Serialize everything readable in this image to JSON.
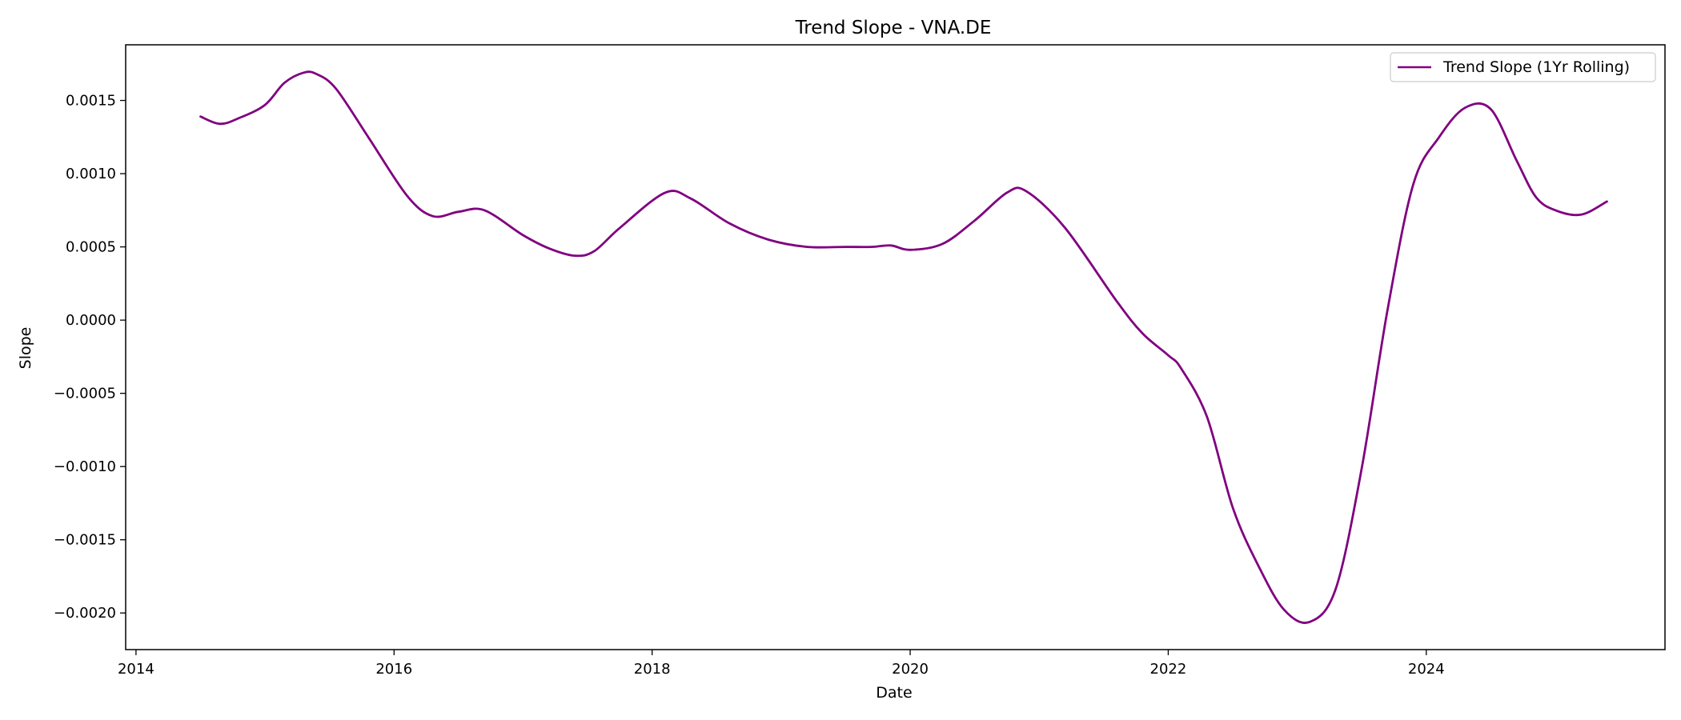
{
  "chart_data": {
    "type": "line",
    "title": "Trend Slope - VNA.DE",
    "xlabel": "Date",
    "ylabel": "Slope",
    "xlim": [
      2013.92,
      2025.85
    ],
    "ylim": [
      -0.00225,
      0.00188
    ],
    "x_ticks": [
      2014,
      2016,
      2018,
      2020,
      2022,
      2024
    ],
    "x_tick_labels": [
      "2014",
      "2016",
      "2018",
      "2020",
      "2022",
      "2024"
    ],
    "y_ticks": [
      0.0015,
      0.001,
      0.0005,
      0.0,
      -0.0005,
      -0.001,
      -0.0015,
      -0.002
    ],
    "y_tick_labels": [
      "0.0015",
      "0.0010",
      "0.0005",
      "0.0000",
      "−0.0005",
      "−0.0010",
      "−0.0015",
      "−0.0020"
    ],
    "grid": false,
    "legend": {
      "position": "top-right",
      "entries": [
        "Trend Slope (1Yr Rolling)"
      ]
    },
    "series": [
      {
        "name": "Trend Slope (1Yr Rolling)",
        "color": "#800080",
        "x": [
          2014.5,
          2014.65,
          2014.8,
          2015.0,
          2015.15,
          2015.3,
          2015.4,
          2015.55,
          2015.8,
          2016.1,
          2016.3,
          2016.5,
          2016.7,
          2017.0,
          2017.2,
          2017.4,
          2017.55,
          2017.75,
          2018.1,
          2018.3,
          2018.6,
          2018.9,
          2019.2,
          2019.5,
          2019.7,
          2019.85,
          2020.0,
          2020.25,
          2020.5,
          2020.75,
          2020.9,
          2021.2,
          2021.6,
          2021.8,
          2022.0,
          2022.1,
          2022.3,
          2022.5,
          2022.7,
          2022.9,
          2023.1,
          2023.3,
          2023.5,
          2023.7,
          2023.9,
          2024.1,
          2024.3,
          2024.5,
          2024.7,
          2024.85,
          2025.0,
          2025.2,
          2025.4
        ],
        "y": [
          0.00139,
          0.00134,
          0.00138,
          0.00147,
          0.00162,
          0.00169,
          0.00168,
          0.00158,
          0.00125,
          0.00085,
          0.00071,
          0.00074,
          0.00075,
          0.00058,
          0.00049,
          0.00044,
          0.00047,
          0.00063,
          0.00087,
          0.00083,
          0.00066,
          0.00055,
          0.0005,
          0.0005,
          0.0005,
          0.00051,
          0.00048,
          0.00052,
          0.00068,
          0.00087,
          0.00088,
          0.00063,
          0.00013,
          -9e-05,
          -0.00024,
          -0.00033,
          -0.00066,
          -0.00128,
          -0.00168,
          -0.00198,
          -0.00206,
          -0.00183,
          -0.00101,
          7e-05,
          0.00093,
          0.00125,
          0.00145,
          0.00144,
          0.00109,
          0.00084,
          0.00075,
          0.00072,
          0.00081
        ]
      }
    ]
  }
}
